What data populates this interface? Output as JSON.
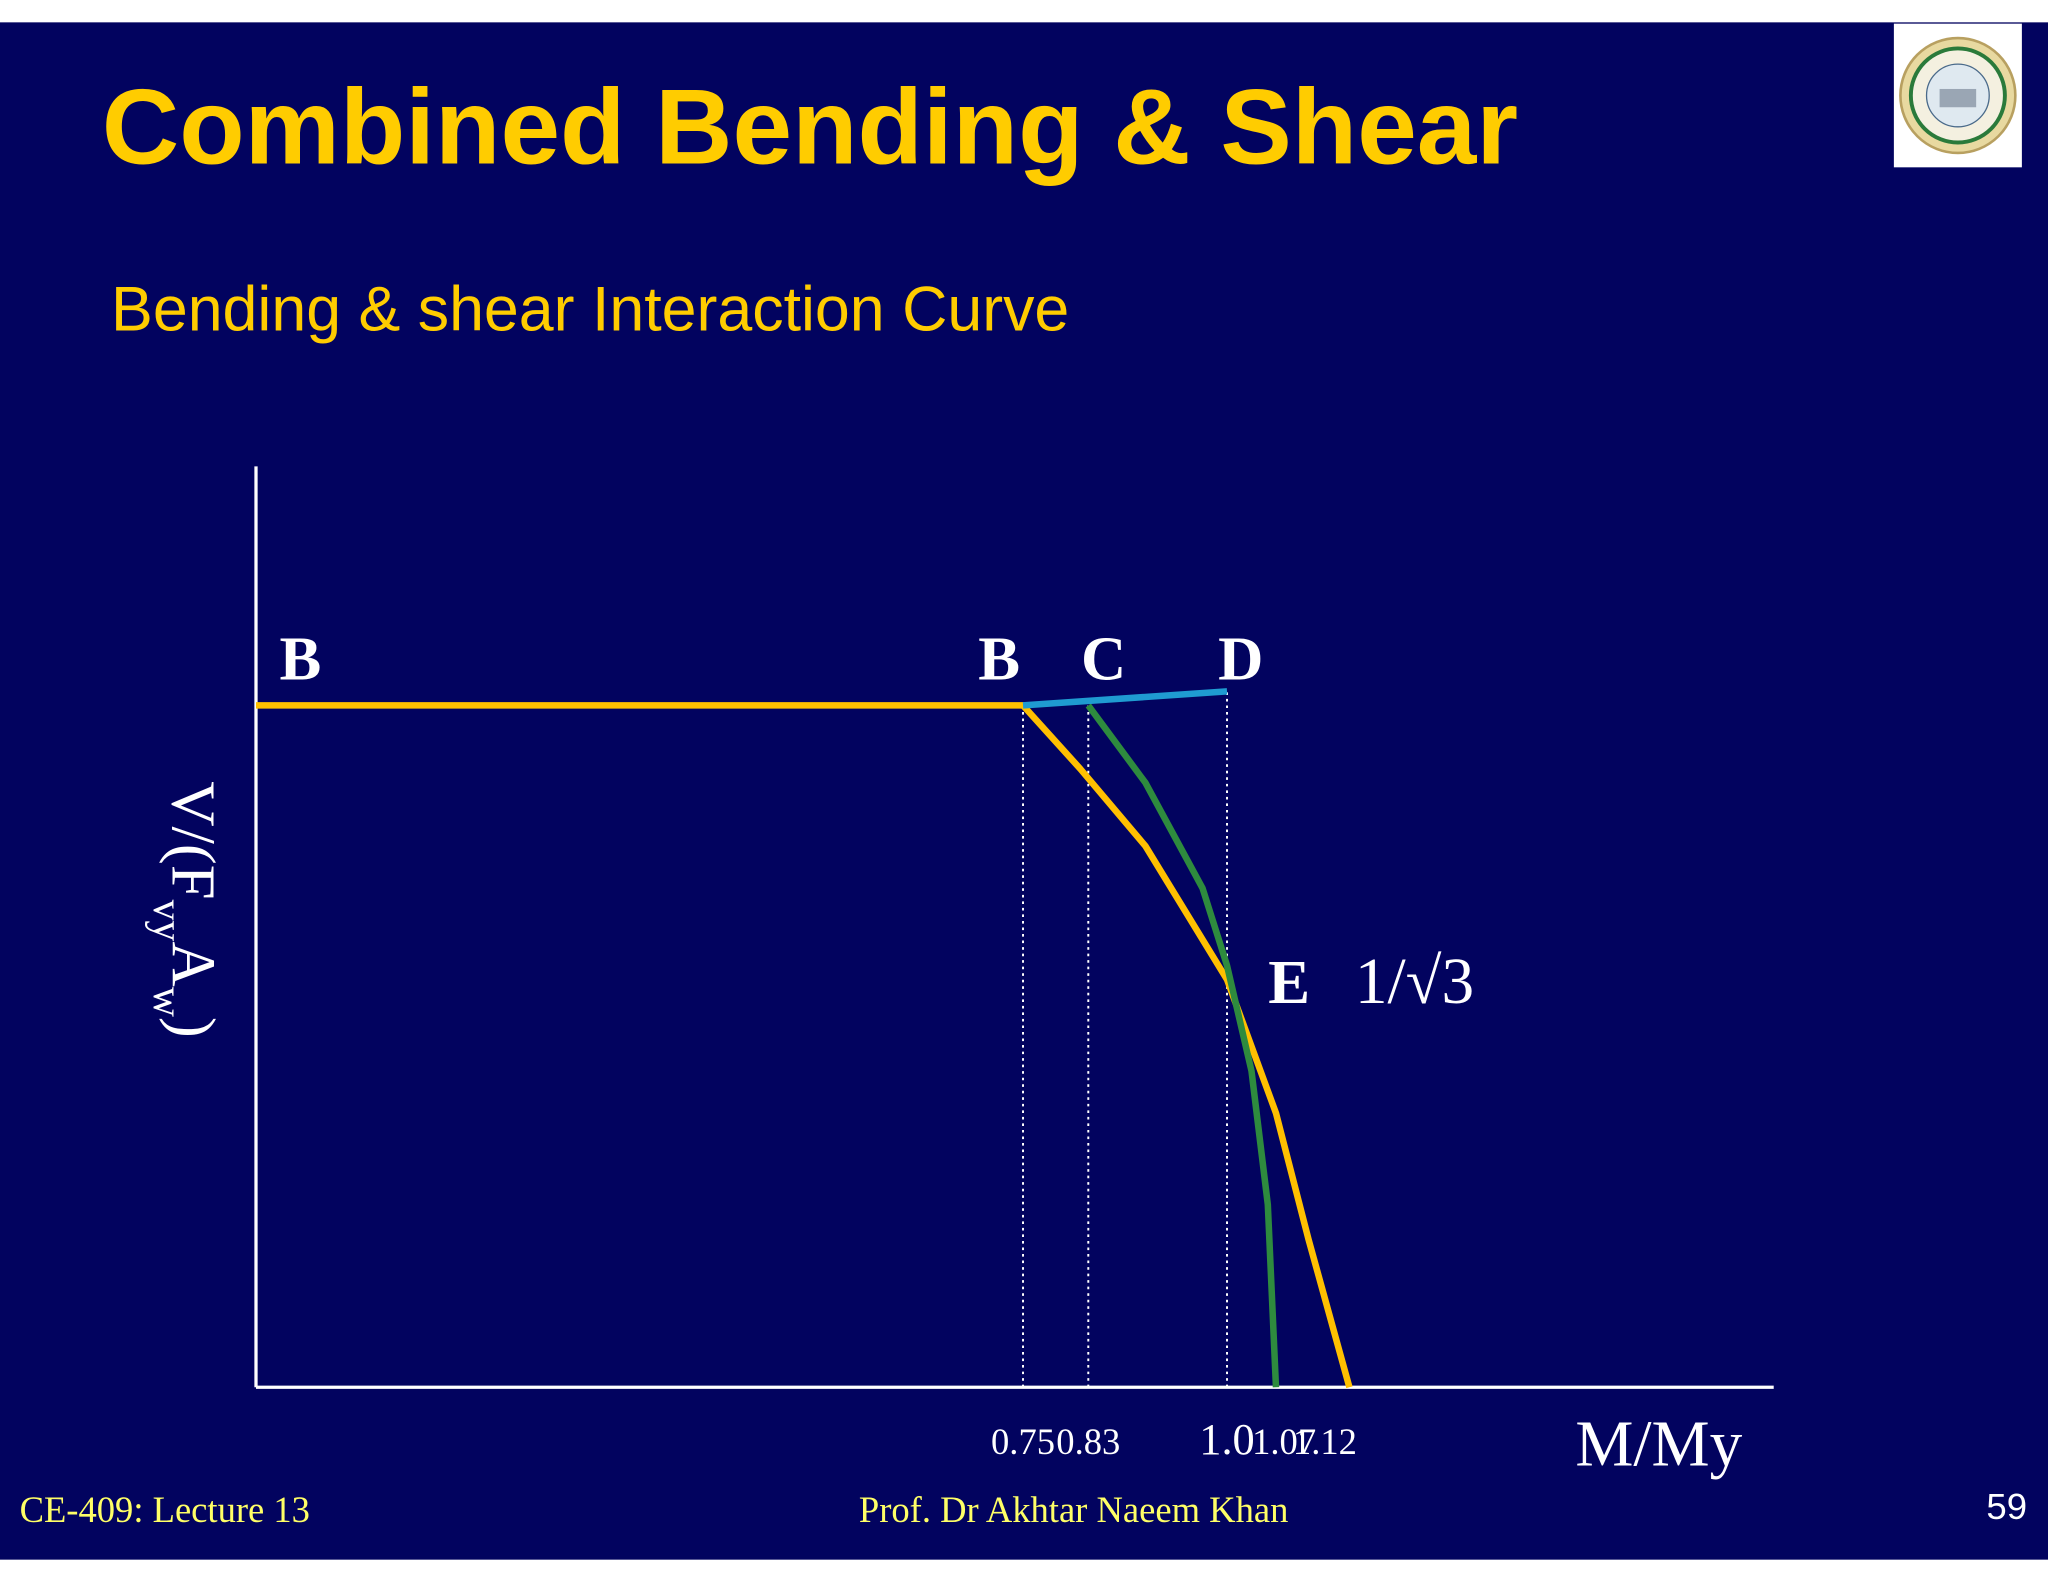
{
  "slide": {
    "title": "Combined Bending & Shear",
    "subtitle": "Bending & shear Interaction Curve",
    "footer_left": "CE-409: Lecture 13",
    "footer_center": "Prof. Dr Akhtar Naeem Khan",
    "page_number": "59"
  },
  "chart_data": {
    "type": "line",
    "xlabel": "M/My",
    "ylabel": [
      "V/(F",
      "vy",
      "A",
      "w",
      ")"
    ],
    "xlim": [
      -0.19,
      1.67
    ],
    "ylim": [
      0,
      1.31
    ],
    "xticks": [
      0.75,
      0.83,
      {
        "value": 1,
        "label": "1.0"
      },
      1.07,
      1.12
    ],
    "series": [
      {
        "color": "#ffc000",
        "x": [
          -0.19,
          0.75,
          0.82,
          0.9,
          1.0,
          1.06,
          1.1,
          1.15
        ],
        "values": [
          0.97,
          0.97,
          0.88,
          0.77,
          0.58,
          0.39,
          0.21,
          0
        ]
      },
      {
        "color": "#2e8b3e",
        "x": [
          0.83,
          0.9,
          0.97,
          1.0,
          1.03,
          1.05,
          1.06
        ],
        "values": [
          0.97,
          0.86,
          0.71,
          0.6,
          0.45,
          0.26,
          0
        ]
      },
      {
        "color": "#1f9bd1",
        "x": [
          0.75,
          1.0
        ],
        "values": [
          0.97,
          0.99
        ]
      }
    ],
    "annotations": [
      "B",
      "B",
      "C",
      "D",
      "E",
      "1/√3"
    ]
  }
}
